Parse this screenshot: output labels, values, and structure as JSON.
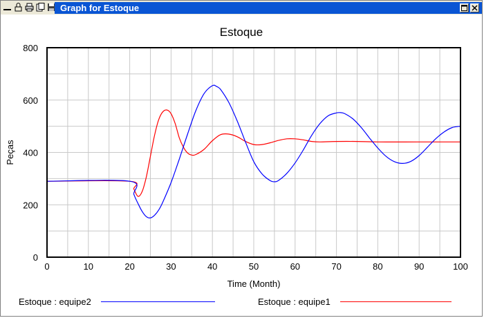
{
  "window": {
    "title": "Graph for Estoque",
    "toolbar_icons": [
      "minimize-icon",
      "lock-icon",
      "print-icon",
      "copy-icon",
      "save-icon"
    ]
  },
  "chart_data": {
    "type": "line",
    "title": "Estoque",
    "xlabel": "Time (Month)",
    "ylabel": "Peças",
    "xlim": [
      0,
      100
    ],
    "ylim": [
      0,
      800
    ],
    "xticks": [
      0,
      10,
      20,
      30,
      40,
      50,
      60,
      70,
      80,
      90,
      100
    ],
    "yticks": [
      0,
      200,
      400,
      600,
      800
    ],
    "grid": true,
    "legend_position": "bottom",
    "series": [
      {
        "name": "Estoque : equipe2",
        "color": "#0000ff",
        "x": [
          0,
          20,
          21,
          22,
          23,
          24,
          25,
          26,
          27,
          28,
          30,
          32,
          34,
          36,
          38,
          40,
          41,
          42,
          44,
          46,
          48,
          50,
          52,
          54,
          55,
          56,
          58,
          60,
          62,
          64,
          66,
          68,
          70,
          71,
          72,
          74,
          76,
          78,
          80,
          82,
          84,
          86,
          88,
          90,
          92,
          94,
          96,
          98,
          100
        ],
        "y": [
          290,
          290,
          240,
          205,
          175,
          155,
          150,
          160,
          180,
          210,
          285,
          375,
          470,
          560,
          625,
          655,
          652,
          640,
          590,
          520,
          440,
          365,
          318,
          292,
          288,
          293,
          320,
          360,
          410,
          465,
          510,
          540,
          551,
          552,
          548,
          528,
          495,
          455,
          417,
          385,
          365,
          358,
          366,
          388,
          420,
          452,
          478,
          495,
          500
        ]
      },
      {
        "name": "Estoque : equipe1",
        "color": "#ff0000",
        "x": [
          0,
          20,
          21,
          22,
          23,
          24,
          25,
          26,
          27,
          28,
          29,
          30,
          31,
          32,
          33,
          34,
          35,
          36,
          38,
          40,
          42,
          44,
          46,
          48,
          50,
          52,
          54,
          56,
          58,
          60,
          62,
          64,
          66,
          70,
          75,
          80,
          90,
          100
        ],
        "y": [
          290,
          290,
          260,
          232,
          250,
          305,
          385,
          465,
          525,
          555,
          562,
          548,
          510,
          455,
          420,
          398,
          390,
          392,
          412,
          445,
          468,
          470,
          460,
          442,
          430,
          430,
          437,
          446,
          452,
          452,
          448,
          442,
          440,
          442,
          442,
          440,
          440,
          440
        ]
      }
    ]
  }
}
